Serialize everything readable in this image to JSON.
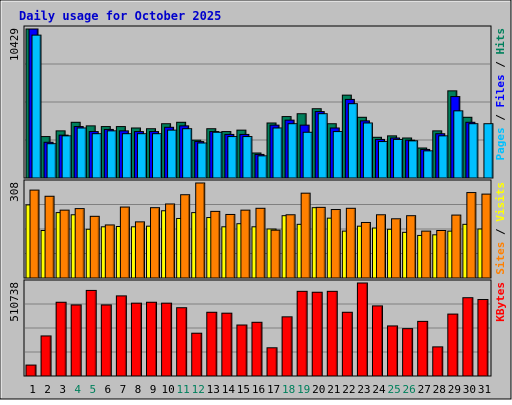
{
  "chart_data": {
    "type": "bar",
    "title": "Daily usage for October 2025",
    "categories": [
      "1",
      "2",
      "3",
      "4",
      "5",
      "6",
      "7",
      "8",
      "9",
      "10",
      "11",
      "12",
      "13",
      "14",
      "15",
      "16",
      "17",
      "18",
      "19",
      "20",
      "21",
      "22",
      "23",
      "24",
      "25",
      "26",
      "27",
      "28",
      "29",
      "30",
      "31"
    ],
    "weekend_days": [
      "4",
      "5",
      "11",
      "12",
      "18",
      "19",
      "25",
      "26"
    ],
    "colors": {
      "title": "#0000cc",
      "weekday_label": "#000000",
      "weekend_label": "#00805c",
      "hits": "#00805c",
      "files": "#0000ff",
      "pages": "#00c0ff",
      "visits": "#ffff00",
      "sites": "#ff8000",
      "kbytes": "#ff0000",
      "frame": "#c0c0c0",
      "grid": "#808080"
    },
    "panels": [
      {
        "id": "hits-files-pages",
        "ymax_label": "10429",
        "ylim": [
          0,
          10429
        ],
        "right_label": [
          {
            "text": "Pages",
            "color": "#00c0ff"
          },
          {
            "text": " / ",
            "color": "#000000"
          },
          {
            "text": "Files",
            "color": "#0000ff"
          },
          {
            "text": " / ",
            "color": "#000000"
          },
          {
            "text": "Hits",
            "color": "#00805c"
          }
        ],
        "series": [
          {
            "name": "Hits",
            "color": "#00805c",
            "values": [
              10429,
              2900,
              3300,
              3900,
              3650,
              3600,
              3600,
              3500,
              3450,
              3800,
              3900,
              2650,
              3450,
              3250,
              3350,
              1750,
              3850,
              4300,
              4500,
              4850,
              3800,
              5800,
              4250,
              2850,
              2950,
              2800,
              2100,
              3300,
              6100,
              4250,
              0
            ]
          },
          {
            "name": "Files",
            "color": "#0000ff",
            "values": [
              10429,
              2500,
              3000,
              3600,
              3250,
              3400,
              3300,
              3250,
              3250,
              3550,
              3650,
              2550,
              3250,
              3050,
              3050,
              1650,
              3700,
              4050,
              3700,
              4650,
              3500,
              5500,
              4000,
              2700,
              2800,
              2650,
              2000,
              3100,
              5700,
              3900,
              0
            ]
          },
          {
            "name": "Pages",
            "color": "#00c0ff",
            "values": [
              10000,
              2400,
              2950,
              3500,
              3100,
              3300,
              3100,
              3100,
              3100,
              3350,
              3450,
              2450,
              3200,
              2900,
              2900,
              1550,
              3500,
              3800,
              3200,
              4500,
              3250,
              5200,
              3850,
              2550,
              2700,
              2600,
              1900,
              2950,
              4700,
              3800,
              3800
            ]
          }
        ]
      },
      {
        "id": "visits-sites",
        "ymax_label": "308",
        "ylim": [
          0,
          308
        ],
        "right_label": [
          {
            "text": "Sites",
            "color": "#ff8000"
          },
          {
            "text": " / ",
            "color": "#000000"
          },
          {
            "text": "Visits",
            "color": "#ffff00"
          }
        ],
        "series": [
          {
            "name": "Visits",
            "color": "#ffff00",
            "values": [
              237,
              154,
              212,
              205,
              158,
              166,
              167,
              166,
              168,
              218,
              193,
              212,
              196,
              166,
              176,
              166,
              159,
              202,
              174,
              228,
              194,
              152,
              168,
              162,
              158,
              148,
              138,
              140,
              152,
              174,
              159
            ]
          },
          {
            "name": "Sites",
            "color": "#ff8000",
            "values": [
              285,
              265,
              220,
              225,
              200,
              172,
              230,
              182,
              228,
              240,
              270,
              308,
              216,
              206,
              220,
              226,
              155,
              205,
              275,
              229,
              222,
              226,
              180,
              205,
              192,
              202,
              152,
              154,
              204,
              277,
              272
            ]
          }
        ]
      },
      {
        "id": "kbytes",
        "ymax_label": "510738",
        "ylim": [
          0,
          510738
        ],
        "right_label": [
          {
            "text": "KBytes",
            "color": "#ff0000"
          }
        ],
        "series": [
          {
            "name": "KBytes",
            "color": "#ff0000",
            "values": [
              60000,
              220000,
              405000,
              390000,
              470000,
              390000,
              440000,
              400000,
              405000,
              400000,
              375000,
              235000,
              350000,
              345000,
              280000,
              295000,
              155000,
              325000,
              465000,
              460000,
              465000,
              350000,
              510738,
              385000,
              275000,
              260000,
              300000,
              160000,
              340000,
              430000,
              420000
            ]
          }
        ]
      }
    ]
  }
}
